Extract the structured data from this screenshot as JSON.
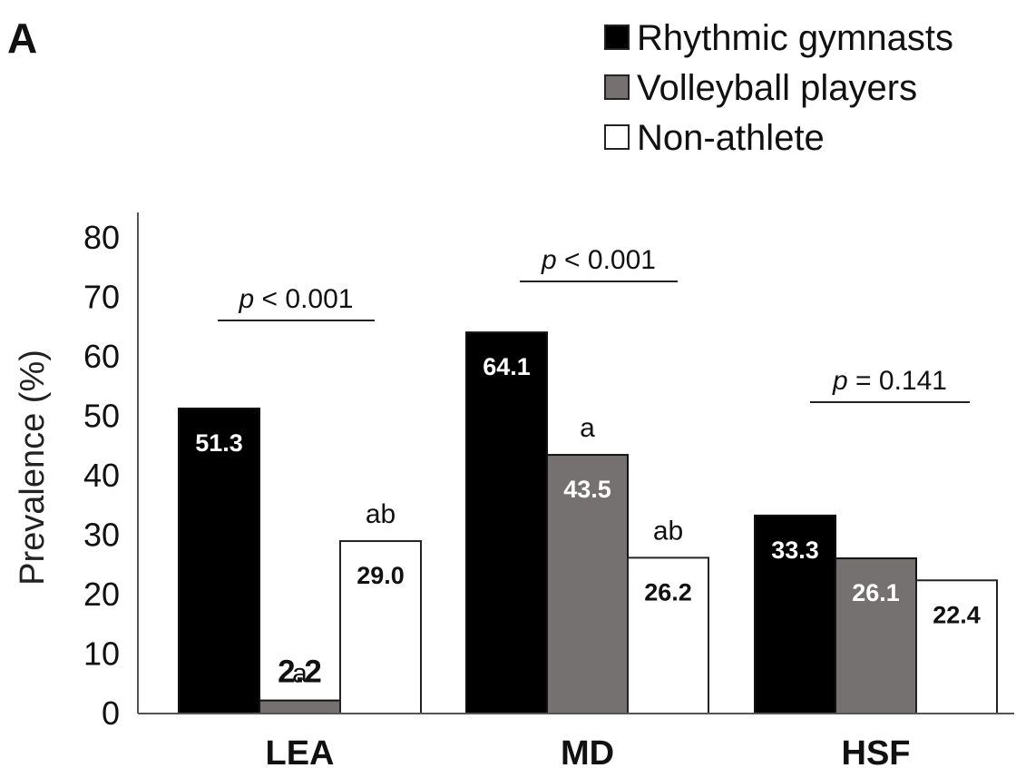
{
  "panel_label": "A",
  "chart_data": {
    "type": "bar",
    "ylabel": "Prevalence (%)",
    "ylim": [
      0,
      80
    ],
    "yticks": [
      0,
      10,
      20,
      30,
      40,
      50,
      60,
      70,
      80
    ],
    "categories": [
      "LEA",
      "MD",
      "HSF"
    ],
    "series": [
      {
        "name": "Rhythmic gymnasts",
        "color": "#000000",
        "label_color": "#ffffff",
        "values": [
          51.3,
          64.1,
          33.3
        ],
        "labels": [
          "51.3",
          "64.1",
          "33.3"
        ]
      },
      {
        "name": "Volleyball players",
        "color": "#767171",
        "label_color": "#ffffff",
        "values": [
          2.2,
          43.5,
          26.1
        ],
        "labels": [
          "2.2",
          "43.5",
          "26.1"
        ]
      },
      {
        "name": "Non-athlete",
        "color": "#ffffff",
        "label_color": "#111111",
        "values": [
          29.0,
          26.2,
          22.4
        ],
        "labels": [
          "29.0",
          "26.2",
          "22.4"
        ]
      }
    ],
    "significance": [
      {
        "category": "LEA",
        "series": "Volleyball players",
        "text": "a"
      },
      {
        "category": "LEA",
        "series": "Non-athlete",
        "text": "ab"
      },
      {
        "category": "MD",
        "series": "Volleyball players",
        "text": "a"
      },
      {
        "category": "MD",
        "series": "Non-athlete",
        "text": "ab"
      }
    ],
    "p_values": [
      {
        "category": "LEA",
        "p": "p",
        "rest": " < 0.001"
      },
      {
        "category": "MD",
        "p": "p",
        "rest": " < 0.001"
      },
      {
        "category": "HSF",
        "p": "p",
        "rest": " = 0.141"
      }
    ],
    "legend_position": "top-right",
    "grid": false
  }
}
